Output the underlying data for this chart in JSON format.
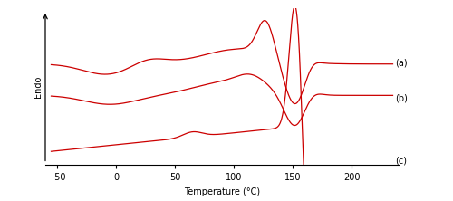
{
  "xlabel": "Temperature (°C)",
  "ylabel": "Endo",
  "xlim": [
    -60,
    240
  ],
  "ylim": [
    -0.05,
    1.0
  ],
  "x_ticks": [
    -50,
    0,
    50,
    100,
    150,
    200
  ],
  "line_color": "#cc0000",
  "background_color": "#ffffff",
  "labels": [
    "(a)",
    "(b)",
    "(c)"
  ],
  "label_fontsize": 7,
  "xlabel_fontsize": 7,
  "ylabel_fontsize": 7,
  "tick_fontsize": 7
}
